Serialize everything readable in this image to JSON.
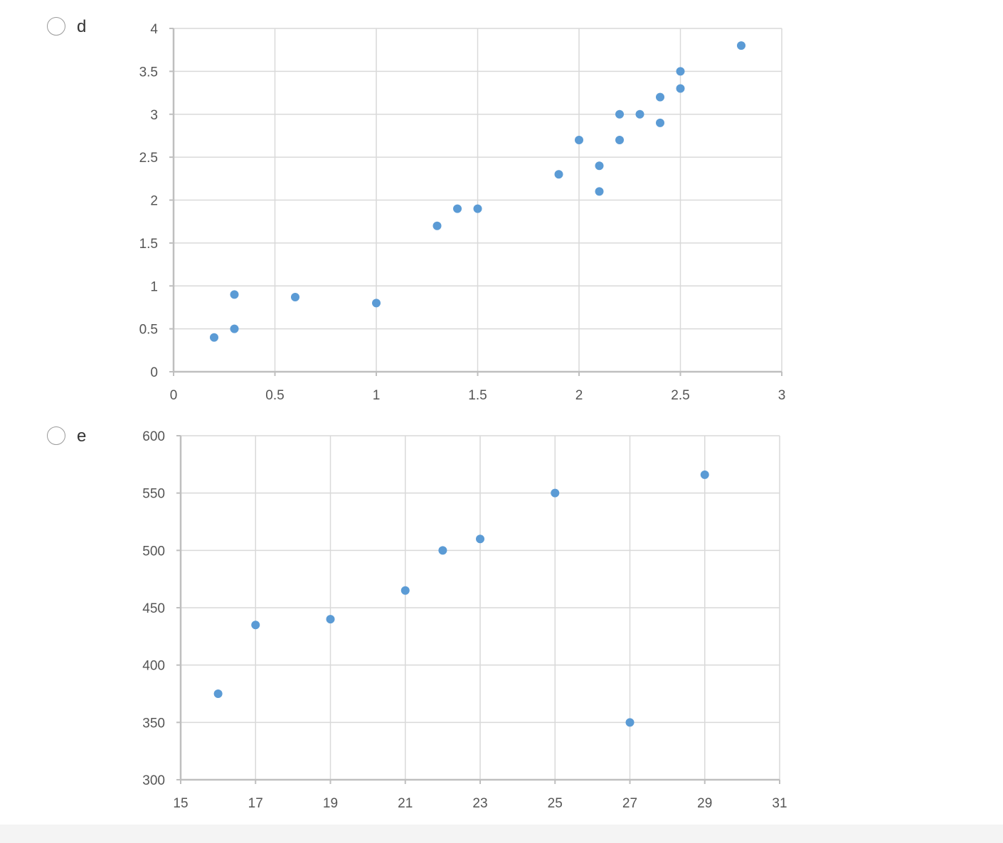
{
  "options": [
    {
      "label": "d"
    },
    {
      "label": "e"
    }
  ],
  "colors": {
    "point": "#5b9bd5",
    "grid": "#d9d9d9",
    "axis": "#bfbfbf"
  },
  "chart_data": [
    {
      "type": "scatter",
      "title": "",
      "xlabel": "",
      "ylabel": "",
      "xlim": [
        0,
        3
      ],
      "ylim": [
        0,
        4
      ],
      "x_ticks": [
        "0",
        "0.5",
        "1",
        "1.5",
        "2",
        "2.5",
        "3"
      ],
      "y_ticks": [
        "0",
        "0.5",
        "1",
        "1.5",
        "2",
        "2.5",
        "3",
        "3.5",
        "4"
      ],
      "grid": true,
      "legend": "none",
      "series": [
        {
          "x": [
            0.2,
            0.3,
            0.3,
            0.6,
            1.0,
            1.3,
            1.4,
            1.5,
            1.9,
            2.0,
            2.1,
            2.1,
            2.2,
            2.2,
            2.3,
            2.4,
            2.4,
            2.5,
            2.5,
            2.8
          ],
          "y": [
            0.4,
            0.5,
            0.9,
            0.87,
            0.8,
            1.7,
            1.9,
            1.9,
            2.3,
            2.7,
            2.1,
            2.4,
            2.7,
            3.0,
            3.0,
            2.9,
            3.2,
            3.3,
            3.5,
            3.8
          ]
        }
      ]
    },
    {
      "type": "scatter",
      "title": "",
      "xlabel": "",
      "ylabel": "",
      "xlim": [
        15,
        31
      ],
      "ylim": [
        300,
        600
      ],
      "x_ticks": [
        "15",
        "17",
        "19",
        "21",
        "23",
        "25",
        "27",
        "29",
        "31"
      ],
      "y_ticks": [
        "300",
        "350",
        "400",
        "450",
        "500",
        "550",
        "600"
      ],
      "grid": true,
      "legend": "none",
      "series": [
        {
          "x": [
            16,
            17,
            19,
            21,
            22,
            23,
            25,
            27,
            29
          ],
          "y": [
            375,
            435,
            440,
            465,
            500,
            510,
            550,
            350,
            566
          ]
        }
      ]
    }
  ]
}
